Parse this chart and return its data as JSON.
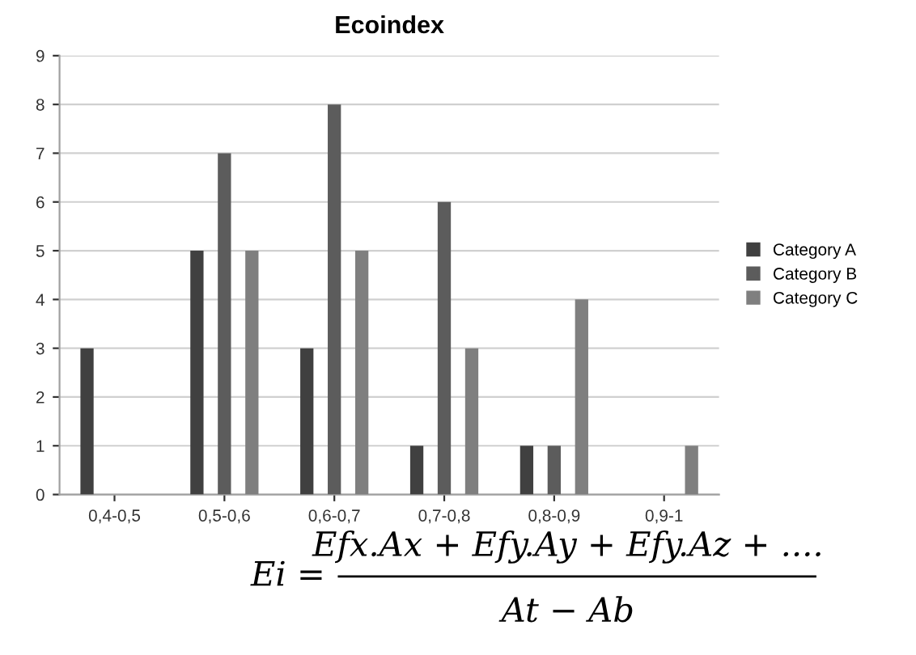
{
  "chart_data": {
    "type": "bar",
    "title": "Ecoindex",
    "categories": [
      "0,4-0,5",
      "0,5-0,6",
      "0,6-0,7",
      "0,7-0,8",
      "0,8-0,9",
      "0,9-1"
    ],
    "series": [
      {
        "name": "Category A",
        "color": "#404040",
        "values": [
          3,
          5,
          3,
          1,
          1,
          0
        ]
      },
      {
        "name": "Category B",
        "color": "#5c5c5c",
        "values": [
          0,
          7,
          8,
          6,
          1,
          0
        ]
      },
      {
        "name": "Category C",
        "color": "#7f7f7f",
        "values": [
          0,
          5,
          5,
          3,
          4,
          1
        ]
      }
    ],
    "ylim": [
      0,
      9
    ],
    "yticks": [
      0,
      1,
      2,
      3,
      4,
      5,
      6,
      7,
      8,
      9
    ],
    "grid": "y",
    "legend": "right",
    "annotations": [
      "Ei =",
      "Efx.Ax + Efy.Ay + Efy.Az + ....",
      "At − Ab"
    ]
  }
}
